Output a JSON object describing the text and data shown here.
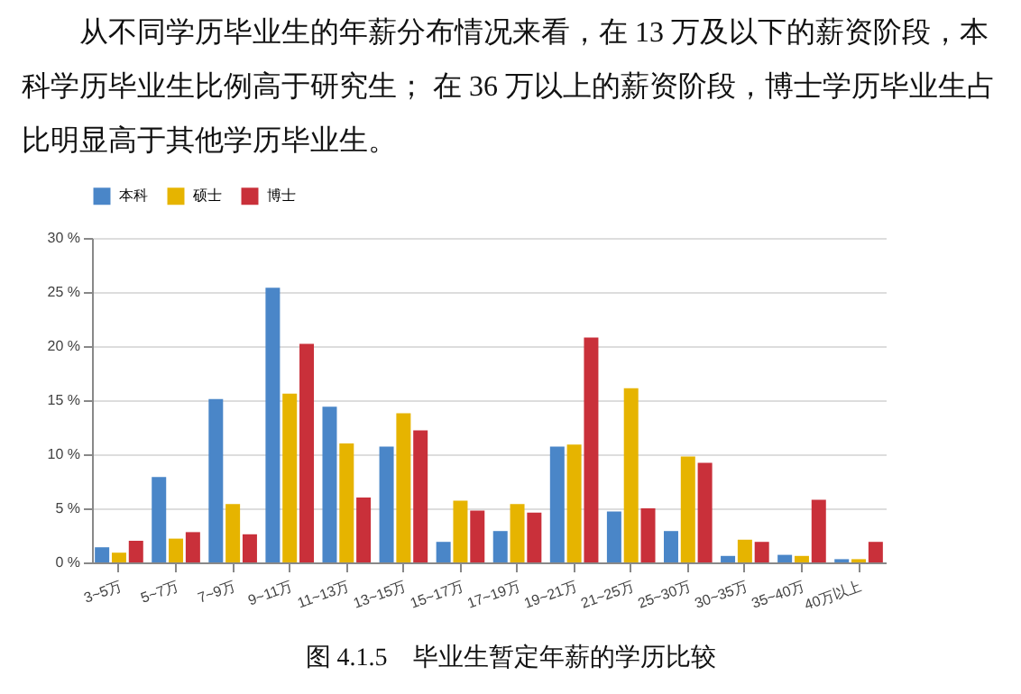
{
  "chart_data": {
    "type": "bar",
    "title": "图 4.1.5　毕业生暂定年薪的学历比较",
    "annotations": [
      "从不同学历毕业生的年薪分布情况来看，在 13 万及以下的薪资阶段，本科学历毕业生比例高于研究生； 在 36 万以上的薪资阶段，博士学历毕业生占比明显高于其他学历毕业生。"
    ],
    "categories": [
      "3~5万",
      "5~7万",
      "7~9万",
      "9~11万",
      "11~13万",
      "13~15万",
      "15~17万",
      "17~19万",
      "19~21万",
      "21~25万",
      "25~30万",
      "30~35万",
      "35~40万",
      "40万以上"
    ],
    "series": [
      {
        "name": "本科",
        "color": "#4a86c8",
        "values": [
          1.4,
          7.9,
          15.1,
          25.4,
          14.4,
          10.7,
          1.9,
          2.9,
          10.7,
          4.7,
          2.9,
          0.6,
          0.7,
          0.3
        ]
      },
      {
        "name": "硕士",
        "color": "#e6b400",
        "values": [
          0.9,
          2.2,
          5.4,
          15.6,
          11.0,
          13.8,
          5.7,
          5.4,
          10.9,
          16.1,
          9.8,
          2.1,
          0.6,
          0.3
        ]
      },
      {
        "name": "博士",
        "color": "#c9303a",
        "values": [
          2.0,
          2.8,
          2.6,
          20.2,
          6.0,
          12.2,
          4.8,
          4.6,
          20.8,
          5.0,
          9.2,
          1.9,
          5.8,
          1.9
        ]
      }
    ],
    "ylim": [
      0,
      30
    ],
    "yticks": [
      {
        "value": 0,
        "label": "0 %"
      },
      {
        "value": 5,
        "label": "5 %"
      },
      {
        "value": 10,
        "label": "10 %"
      },
      {
        "value": 15,
        "label": "15 %"
      },
      {
        "value": 20,
        "label": "20 %"
      },
      {
        "value": 25,
        "label": "25 %"
      },
      {
        "value": 30,
        "label": "30 %"
      }
    ],
    "grid": "y",
    "legend": "top"
  }
}
